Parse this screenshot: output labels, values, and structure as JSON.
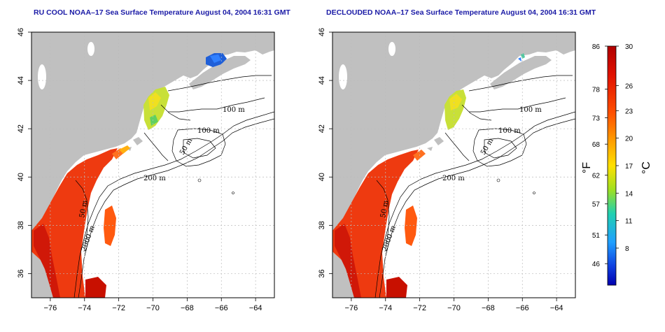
{
  "panels": [
    {
      "title": "RU COOL NOAA–17 Sea Surface Temperature August 04, 2004 16:31 GMT",
      "contour_labels": [
        "100 m",
        "100 m",
        "50 m",
        "200 m",
        "50 m",
        "2000 m"
      ]
    },
    {
      "title": "DECLOUDED NOAA–17 Sea Surface Temperature August 04, 2004 16:31 GMT",
      "contour_labels": [
        "100 m",
        "100 m",
        "50 m",
        "200 m",
        "50 m",
        "2000 m"
      ]
    }
  ],
  "axes": {
    "x_ticks": [
      "−76",
      "−74",
      "−72",
      "−70",
      "−68",
      "−66",
      "−64"
    ],
    "x_values": [
      -76,
      -74,
      -72,
      -70,
      -68,
      -66,
      -64
    ],
    "y_ticks": [
      "46",
      "44",
      "42",
      "40",
      "38",
      "36"
    ],
    "y_values": [
      46,
      44,
      42,
      40,
      38,
      36
    ],
    "lon_range": [
      -77.1,
      -62.9
    ],
    "lat_range": [
      35.0,
      46.0
    ]
  },
  "colorbar": {
    "fahrenheit_label": "°F",
    "celsius_label": "°C",
    "fahrenheit_ticks": [
      "86",
      "78",
      "73",
      "68",
      "62",
      "57",
      "51",
      "46"
    ],
    "celsius_ticks": [
      "30",
      "26",
      "23",
      "20",
      "17",
      "14",
      "11",
      "8"
    ],
    "colors": [
      "#c00000",
      "#ff3000",
      "#ff9000",
      "#ffe000",
      "#a0e020",
      "#20d0b0",
      "#20a0ff",
      "#1040e0",
      "#0000b0"
    ]
  },
  "colors": {
    "land": "#c0c0c0",
    "ocean": "#ffffff",
    "contour": "#000000",
    "title": "#1a1aa6"
  }
}
